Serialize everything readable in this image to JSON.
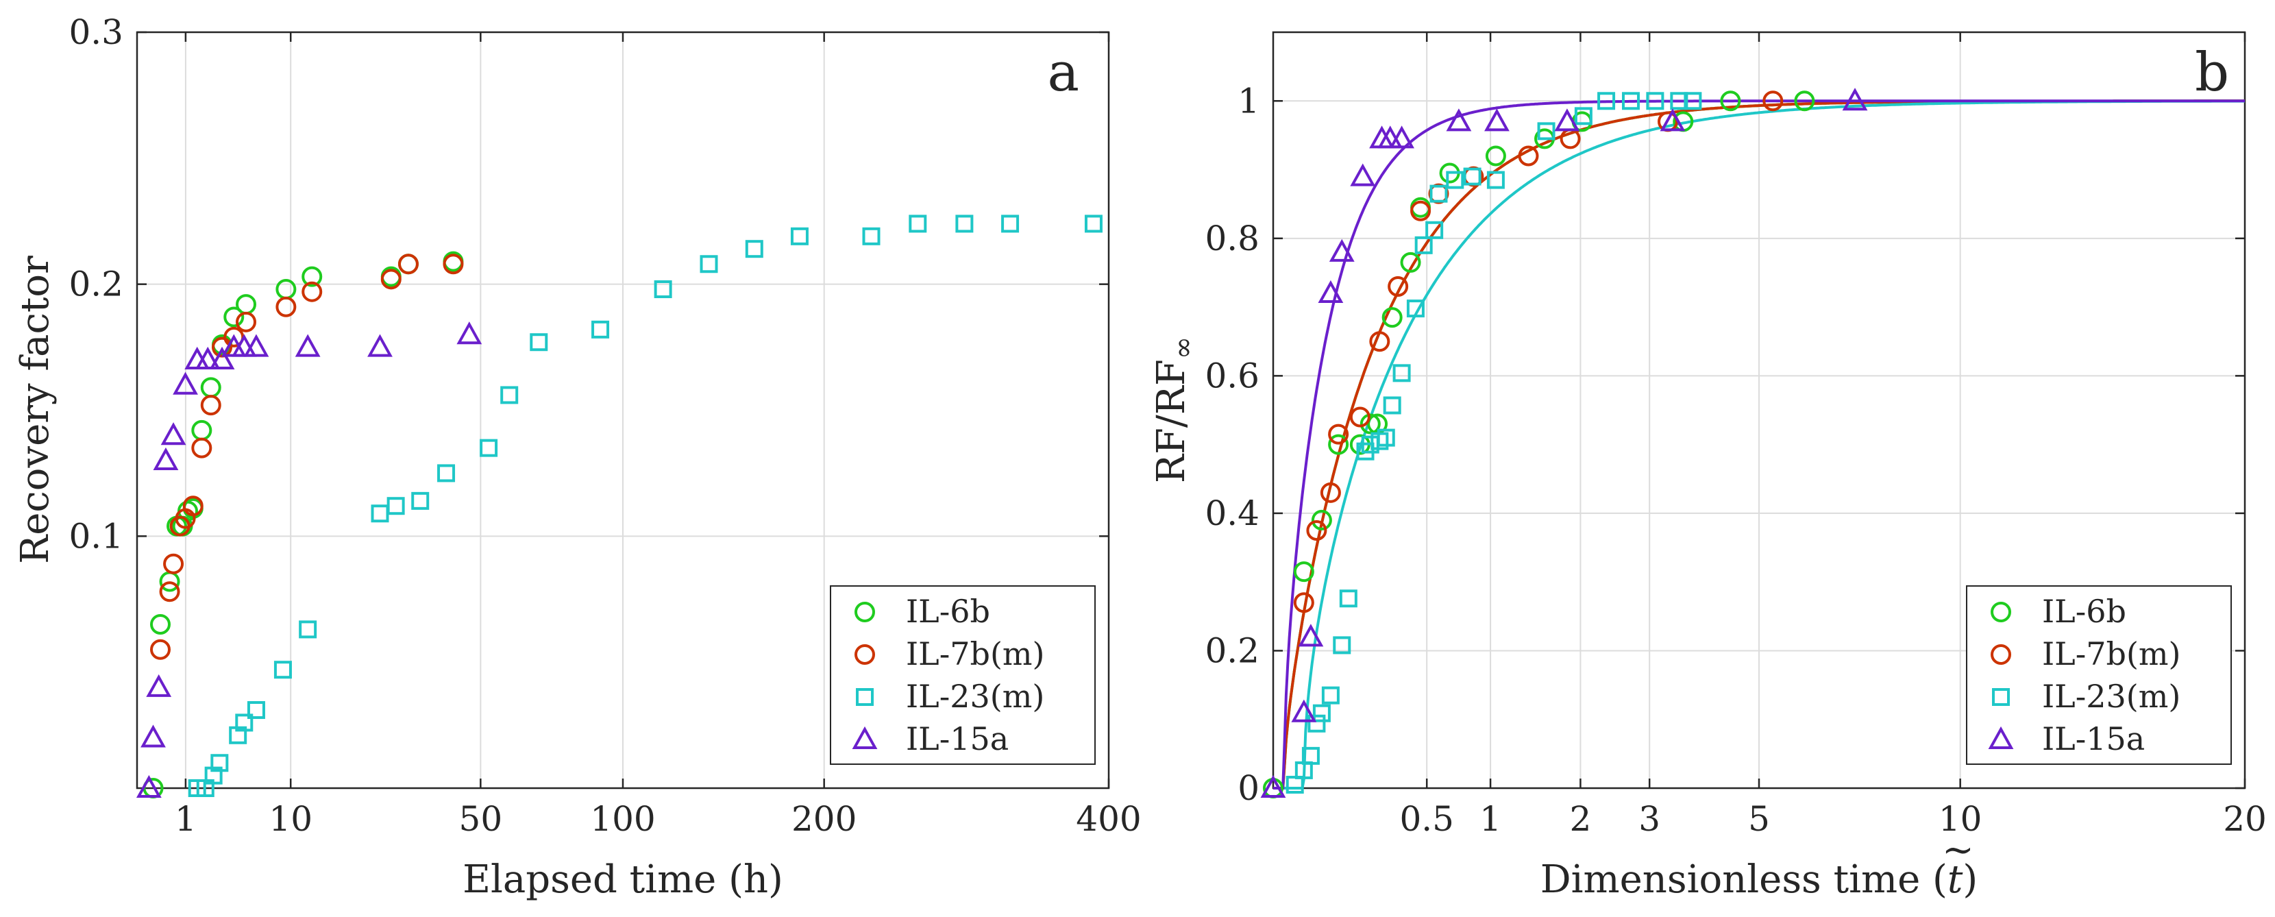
{
  "chart_data": [
    {
      "type": "scatter",
      "panel_label": "a",
      "xlabel": "Elapsed time (h)",
      "ylabel": "Recovery factor",
      "x_scale": "sqrt",
      "xlim": [
        0,
        400
      ],
      "ylim": [
        0,
        0.3
      ],
      "x_ticks": [
        {
          "value": 1,
          "label": "1"
        },
        {
          "value": 10,
          "label": "10"
        },
        {
          "value": 50,
          "label": "50"
        },
        {
          "value": 100,
          "label": "100"
        },
        {
          "value": 200,
          "label": "200"
        },
        {
          "value": 400,
          "label": "400"
        }
      ],
      "y_ticks": [
        {
          "value": 0.1,
          "label": "0.1"
        },
        {
          "value": 0.2,
          "label": "0.2"
        },
        {
          "value": 0.3,
          "label": "0.3"
        }
      ],
      "grid": true,
      "legend_position": "bottom-right",
      "series": [
        {
          "name": "IL-6b",
          "marker": "circle",
          "color": "#1fcc1f",
          "x": [
            0.11,
            0.23,
            0.45,
            0.67,
            0.88,
            1.09,
            1.33,
            1.77,
            2.31,
            3.06,
            3.97,
            5.03,
            9.4,
            12.96,
            27.35,
            31.19,
            42.36
          ],
          "y": [
            0.0,
            0.065,
            0.082,
            0.104,
            0.104,
            0.11,
            0.111,
            0.142,
            0.159,
            0.176,
            0.187,
            0.192,
            0.198,
            0.203,
            0.203,
            0.208,
            0.209
          ]
        },
        {
          "name": "IL-7b(m)",
          "marker": "circle",
          "color": "#cc3300",
          "x": [
            0.23,
            0.45,
            0.56,
            0.78,
            0.99,
            1.33,
            1.77,
            2.31,
            3.06,
            3.97,
            5.03,
            9.4,
            12.96,
            27.35,
            31.19,
            42.36
          ],
          "y": [
            0.055,
            0.078,
            0.089,
            0.104,
            0.107,
            0.112,
            0.135,
            0.152,
            0.175,
            0.179,
            0.185,
            0.191,
            0.197,
            0.202,
            0.208,
            0.208
          ]
        },
        {
          "name": "IL-23(m)",
          "marker": "square",
          "color": "#1fc7c7",
          "x": [
            1.53,
            1.98,
            2.48,
            2.88,
            4.31,
            4.86,
            6.02,
            9.02,
            12.35,
            25.0,
            28.37,
            33.97,
            40.47,
            52.37,
            58.7,
            68.38,
            90.92,
            117.22,
            138.54,
            161.42,
            186.0,
            228.4,
            258.22,
            290.0,
            322.92,
            387.66
          ],
          "y": [
            0.0,
            0.0,
            0.005,
            0.01,
            0.021,
            0.026,
            0.031,
            0.047,
            0.063,
            0.109,
            0.112,
            0.114,
            0.125,
            0.135,
            0.156,
            0.177,
            0.182,
            0.198,
            0.208,
            0.214,
            0.219,
            0.219,
            0.224,
            0.224,
            0.224,
            0.224
          ]
        },
        {
          "name": "IL-15a",
          "marker": "triangle",
          "color": "#6a1fcc",
          "x": [
            0.06,
            0.11,
            0.2,
            0.35,
            0.56,
            0.99,
            1.53,
            2.12,
            3.06,
            3.97,
            4.86,
            6.02,
            12.35,
            25.0,
            46.76
          ],
          "y": [
            0.0,
            0.02,
            0.04,
            0.13,
            0.14,
            0.16,
            0.17,
            0.17,
            0.17,
            0.175,
            0.175,
            0.175,
            0.175,
            0.175,
            0.18
          ]
        }
      ]
    },
    {
      "type": "scatter",
      "panel_label": "b",
      "xlabel": "Dimensionless time (",
      "xlabel_symbol": "t",
      "xlabel_symbol_accent": "~",
      "xlabel_suffix": ")",
      "ylabel": "RF/RF",
      "ylabel_subscript": "∞",
      "x_scale": "sqrt",
      "xlim": [
        0,
        20
      ],
      "ylim": [
        0,
        1.1
      ],
      "x_ticks": [
        {
          "value": 0.5,
          "label": "0.5"
        },
        {
          "value": 1,
          "label": "1"
        },
        {
          "value": 2,
          "label": "2"
        },
        {
          "value": 3,
          "label": "3"
        },
        {
          "value": 5,
          "label": "5"
        },
        {
          "value": 10,
          "label": "10"
        },
        {
          "value": 20,
          "label": "20"
        }
      ],
      "y_ticks": [
        {
          "value": 0,
          "label": "0"
        },
        {
          "value": 0.2,
          "label": "0.2"
        },
        {
          "value": 0.4,
          "label": "0.4"
        },
        {
          "value": 0.6,
          "label": "0.6"
        },
        {
          "value": 0.8,
          "label": "0.8"
        },
        {
          "value": 1,
          "label": "1"
        }
      ],
      "grid": true,
      "legend_position": "bottom-right",
      "fitted_curves": [
        {
          "series": "IL-6b",
          "color": "#1fcc1f",
          "t0": 0.0025,
          "tau": 0.2
        },
        {
          "series": "IL-7b(m)",
          "color": "#cc3300",
          "t0": 0.0025,
          "tau": 0.2
        },
        {
          "series": "IL-23(m)",
          "color": "#1fc7c7",
          "t0": 0.02,
          "tau": 0.3
        },
        {
          "series": "IL-15a",
          "color": "#6a1fcc",
          "t0": 0.0025,
          "tau": 0.05
        }
      ],
      "series": [
        {
          "name": "IL-6b",
          "marker": "circle",
          "color": "#1fcc1f",
          "x": [
            0.0,
            0.02,
            0.05,
            0.09,
            0.16,
            0.2,
            0.23,
            0.3,
            0.4,
            0.46,
            0.66,
            1.05,
            1.56,
            2.02,
            3.56,
            4.43,
            5.98
          ],
          "y": [
            0.0,
            0.315,
            0.39,
            0.5,
            0.5,
            0.53,
            0.53,
            0.685,
            0.765,
            0.845,
            0.895,
            0.92,
            0.945,
            0.97,
            0.97,
            1.0,
            1.0
          ]
        },
        {
          "name": "IL-7b(m)",
          "marker": "circle",
          "color": "#cc3300",
          "x": [
            0.02,
            0.04,
            0.07,
            0.09,
            0.16,
            0.24,
            0.33,
            0.46,
            0.58,
            0.85,
            1.38,
            1.87,
            3.3,
            5.29
          ],
          "y": [
            0.27,
            0.375,
            0.43,
            0.515,
            0.54,
            0.65,
            0.73,
            0.84,
            0.865,
            0.89,
            0.92,
            0.945,
            0.97,
            1.0
          ]
        },
        {
          "name": "IL-23(m)",
          "marker": "square",
          "color": "#1fc7c7",
          "x": [
            0.01,
            0.02,
            0.03,
            0.04,
            0.05,
            0.07,
            0.1,
            0.12,
            0.18,
            0.2,
            0.24,
            0.27,
            0.3,
            0.35,
            0.43,
            0.48,
            0.55,
            0.58,
            0.7,
            0.84,
            1.05,
            1.58,
            2.04,
            2.35,
            2.71,
            3.09,
            3.49,
            3.73
          ],
          "y": [
            0.005,
            0.026,
            0.047,
            0.094,
            0.109,
            0.135,
            0.208,
            0.276,
            0.49,
            0.5,
            0.505,
            0.51,
            0.557,
            0.604,
            0.698,
            0.79,
            0.812,
            0.865,
            0.885,
            0.89,
            0.885,
            0.956,
            0.978,
            1.0,
            1.0,
            1.0,
            1.0,
            1.0
          ]
        },
        {
          "name": "IL-15a",
          "marker": "triangle",
          "color": "#6a1fcc",
          "x": [
            0.0,
            0.02,
            0.03,
            0.07,
            0.1,
            0.17,
            0.25,
            0.29,
            0.35,
            0.73,
            1.06,
            1.83,
            3.38,
            7.17
          ],
          "y": [
            0.0,
            0.11,
            0.22,
            0.72,
            0.78,
            0.89,
            0.945,
            0.945,
            0.945,
            0.97,
            0.97,
            0.97,
            0.97,
            1.0
          ]
        }
      ]
    }
  ]
}
